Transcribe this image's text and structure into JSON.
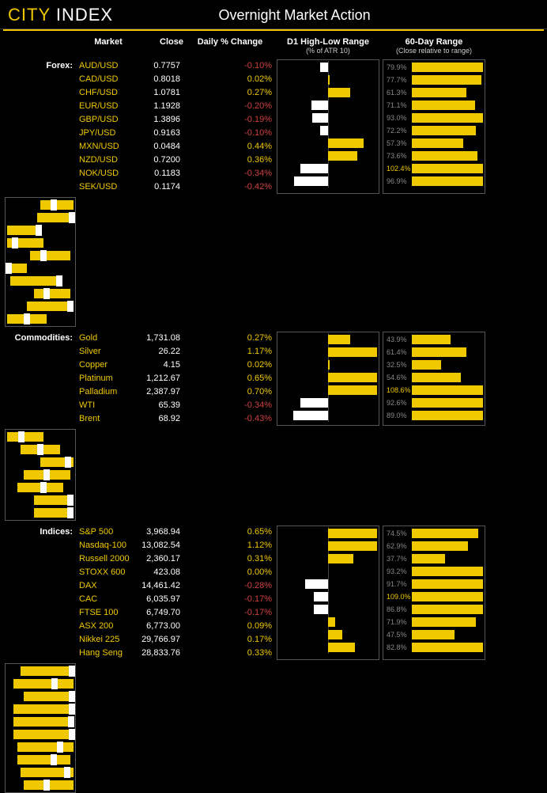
{
  "brand": {
    "city": "CITY",
    "index": "INDEX"
  },
  "title": "Overnight Market Action",
  "columns": {
    "market": "Market",
    "close": "Close",
    "daily": "Daily % Change",
    "d1": "D1 High-Low Range",
    "d1_sub": "(% of ATR 10)",
    "range60": "60-Day Range",
    "range60_sub": "(Close relative to range)"
  },
  "style": {
    "pos_color": "#f0c800",
    "neg_color": "#d04040",
    "bar_pos": "#f0c800",
    "bar_neg": "#ffffff",
    "daily_scale": 0.6
  },
  "groups": [
    {
      "label": "Forex:",
      "rows": [
        {
          "name": "AUD/USD",
          "close": "0.7757",
          "pct": -0.1,
          "d1": 79.9,
          "r_lo": 50,
          "r_hi": 100,
          "r_close": 70
        },
        {
          "name": "CAD/USD",
          "close": "0.8018",
          "pct": 0.02,
          "d1": 77.7,
          "r_lo": 45,
          "r_hi": 100,
          "r_close": 98
        },
        {
          "name": "CHF/USD",
          "close": "1.0781",
          "pct": 0.27,
          "d1": 61.3,
          "r_lo": 0,
          "r_hi": 50,
          "r_close": 48
        },
        {
          "name": "EUR/USD",
          "close": "1.1928",
          "pct": -0.2,
          "d1": 71.1,
          "r_lo": 0,
          "r_hi": 55,
          "r_close": 12
        },
        {
          "name": "GBP/USD",
          "close": "1.3896",
          "pct": -0.19,
          "d1": 93.0,
          "r_lo": 35,
          "r_hi": 95,
          "r_close": 55
        },
        {
          "name": "JPY/USD",
          "close": "0.9163",
          "pct": -0.1,
          "d1": 72.2,
          "r_lo": 0,
          "r_hi": 30,
          "r_close": 2
        },
        {
          "name": "MXN/USD",
          "close": "0.0484",
          "pct": 0.44,
          "d1": 57.3,
          "r_lo": 5,
          "r_hi": 80,
          "r_close": 78
        },
        {
          "name": "NZD/USD",
          "close": "0.7200",
          "pct": 0.36,
          "d1": 73.6,
          "r_lo": 40,
          "r_hi": 95,
          "r_close": 60
        },
        {
          "name": "NOK/USD",
          "close": "0.1183",
          "pct": -0.34,
          "d1": 102.4,
          "d1_hl": true,
          "r_lo": 30,
          "r_hi": 100,
          "r_close": 95
        },
        {
          "name": "SEK/USD",
          "close": "0.1174",
          "pct": -0.42,
          "d1": 96.9,
          "r_lo": 0,
          "r_hi": 60,
          "r_close": 30
        }
      ]
    },
    {
      "label": "Commodities:",
      "rows": [
        {
          "name": "Gold",
          "close": "1,731.08",
          "pct": 0.27,
          "d1": 43.9,
          "r_lo": 0,
          "r_hi": 55,
          "r_close": 22
        },
        {
          "name": "Silver",
          "close": "26.22",
          "pct": 1.17,
          "d1": 61.4,
          "r_lo": 20,
          "r_hi": 80,
          "r_close": 50
        },
        {
          "name": "Copper",
          "close": "4.15",
          "pct": 0.02,
          "d1": 32.5,
          "r_lo": 50,
          "r_hi": 100,
          "r_close": 92
        },
        {
          "name": "Platinum",
          "close": "1,212.67",
          "pct": 0.65,
          "d1": 54.6,
          "r_lo": 25,
          "r_hi": 95,
          "r_close": 60
        },
        {
          "name": "Palladium",
          "close": "2,387.97",
          "pct": 0.7,
          "d1": 108.6,
          "d1_hl": true,
          "r_lo": 15,
          "r_hi": 85,
          "r_close": 55
        },
        {
          "name": "WTI",
          "close": "65.39",
          "pct": -0.34,
          "d1": 92.6,
          "r_lo": 40,
          "r_hi": 100,
          "r_close": 95
        },
        {
          "name": "Brent",
          "close": "68.92",
          "pct": -0.43,
          "d1": 89.0,
          "r_lo": 40,
          "r_hi": 100,
          "r_close": 95
        }
      ]
    },
    {
      "label": "Indices:",
      "rows": [
        {
          "name": "S&P 500",
          "close": "3,968.94",
          "pct": 0.65,
          "d1": 74.5,
          "r_lo": 20,
          "r_hi": 100,
          "r_close": 98
        },
        {
          "name": "Nasdaq-100",
          "close": "13,082.54",
          "pct": 1.12,
          "d1": 62.9,
          "r_lo": 10,
          "r_hi": 100,
          "r_close": 72
        },
        {
          "name": "Russell 2000",
          "close": "2,360.17",
          "pct": 0.31,
          "d1": 37.7,
          "r_lo": 25,
          "r_hi": 100,
          "r_close": 98
        },
        {
          "name": "STOXX 600",
          "close": "423.08",
          "pct": 0.0,
          "d1": 93.2,
          "r_lo": 10,
          "r_hi": 100,
          "r_close": 98
        },
        {
          "name": "DAX",
          "close": "14,461.42",
          "pct": -0.28,
          "d1": 91.7,
          "r_lo": 10,
          "r_hi": 100,
          "r_close": 96
        },
        {
          "name": "CAC",
          "close": "6,035.97",
          "pct": -0.17,
          "d1": 109.0,
          "d1_hl": true,
          "r_lo": 10,
          "r_hi": 100,
          "r_close": 98
        },
        {
          "name": "FTSE 100",
          "close": "6,749.70",
          "pct": -0.17,
          "d1": 86.8,
          "r_lo": 15,
          "r_hi": 100,
          "r_close": 80
        },
        {
          "name": "ASX 200",
          "close": "6,773.00",
          "pct": 0.09,
          "d1": 71.9,
          "r_lo": 15,
          "r_hi": 95,
          "r_close": 70
        },
        {
          "name": "Nikkei 225",
          "close": "29,766.97",
          "pct": 0.17,
          "d1": 47.5,
          "r_lo": 20,
          "r_hi": 100,
          "r_close": 90
        },
        {
          "name": "Hang Seng",
          "close": "28,833.76",
          "pct": 0.33,
          "d1": 82.8,
          "r_lo": 25,
          "r_hi": 100,
          "r_close": 60
        }
      ]
    }
  ]
}
